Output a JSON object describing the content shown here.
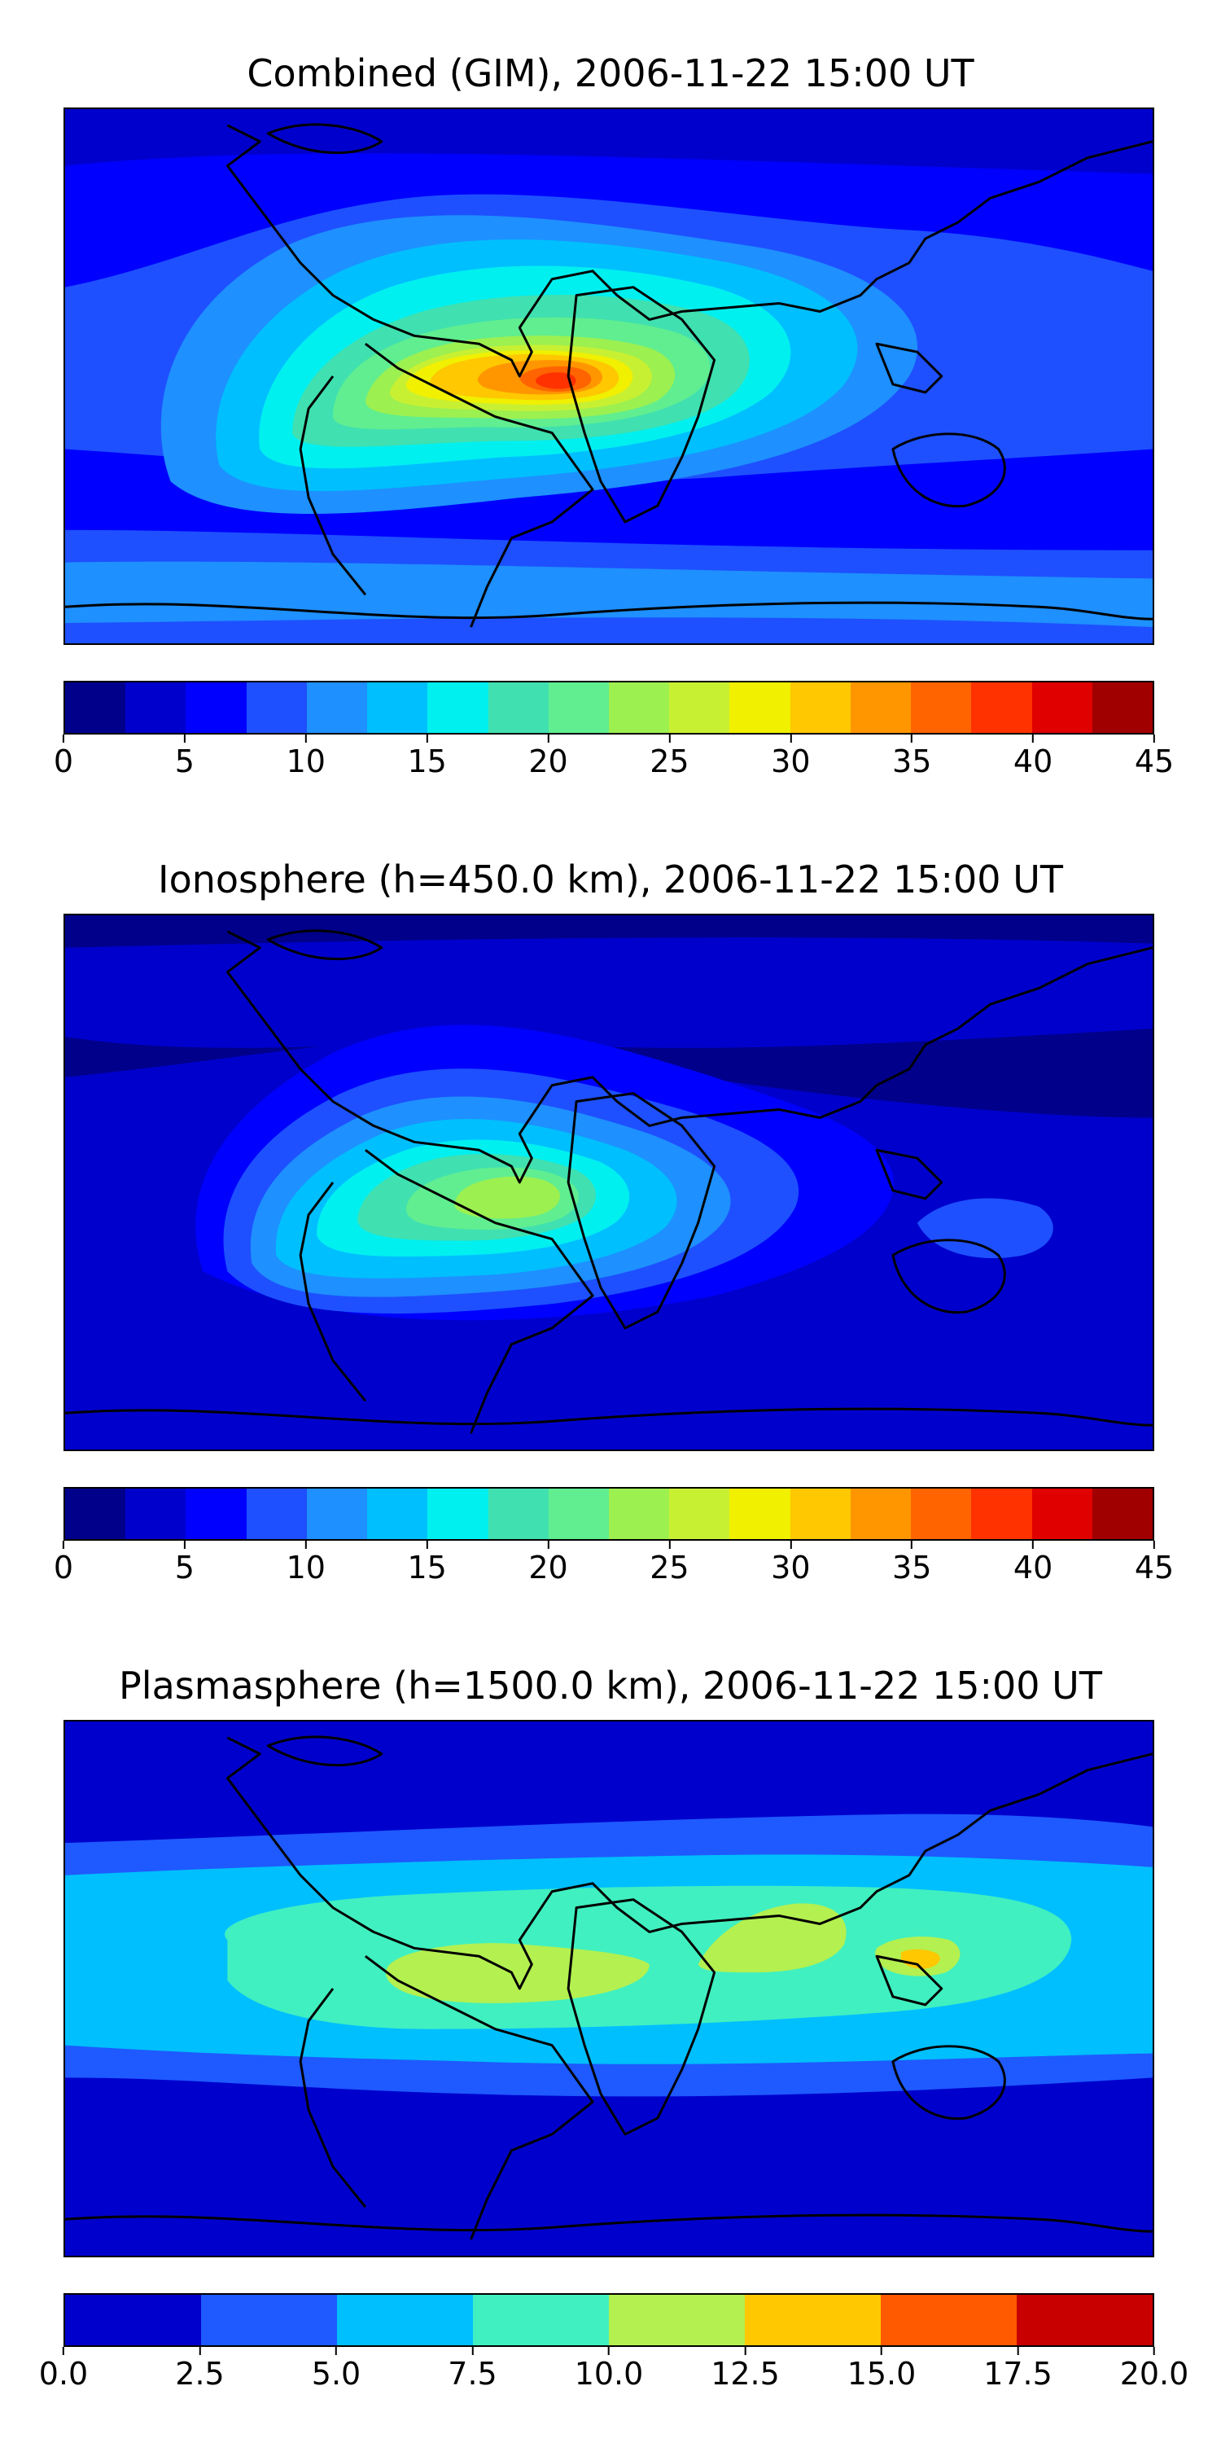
{
  "panels": [
    {
      "title": "Combined (GIM), 2006-11-22 15:00 UT",
      "colorbar": {
        "ticks": [
          "0",
          "5",
          "10",
          "15",
          "20",
          "25",
          "30",
          "35",
          "40",
          "45"
        ],
        "colors": [
          "#00008b",
          "#0000cd",
          "#0000ff",
          "#1e50ff",
          "#1e90ff",
          "#00bfff",
          "#00f0f0",
          "#40e0b0",
          "#60ee90",
          "#9cf050",
          "#c8f032",
          "#f0f000",
          "#ffc800",
          "#ff9600",
          "#ff6400",
          "#ff3200",
          "#e00000",
          "#a00000"
        ]
      }
    },
    {
      "title": "Ionosphere  (h=450.0 km), 2006-11-22 15:00 UT",
      "colorbar": {
        "ticks": [
          "0",
          "5",
          "10",
          "15",
          "20",
          "25",
          "30",
          "35",
          "40",
          "45"
        ],
        "colors": [
          "#00008b",
          "#0000cd",
          "#0000ff",
          "#1e50ff",
          "#1e90ff",
          "#00bfff",
          "#00f0f0",
          "#40e0b0",
          "#60ee90",
          "#9cf050",
          "#c8f032",
          "#f0f000",
          "#ffc800",
          "#ff9600",
          "#ff6400",
          "#ff3200",
          "#e00000",
          "#a00000"
        ]
      }
    },
    {
      "title": "Plasmasphere (h=1500.0 km), 2006-11-22 15:00 UT",
      "colorbar": {
        "ticks": [
          "0.0",
          "2.5",
          "5.0",
          "7.5",
          "10.0",
          "12.5",
          "15.0",
          "17.5",
          "20.0"
        ],
        "colors": [
          "#0000cd",
          "#1e5aff",
          "#00bfff",
          "#40f0c0",
          "#b4f050",
          "#ffc800",
          "#ff5a00",
          "#c80000"
        ]
      }
    }
  ]
}
